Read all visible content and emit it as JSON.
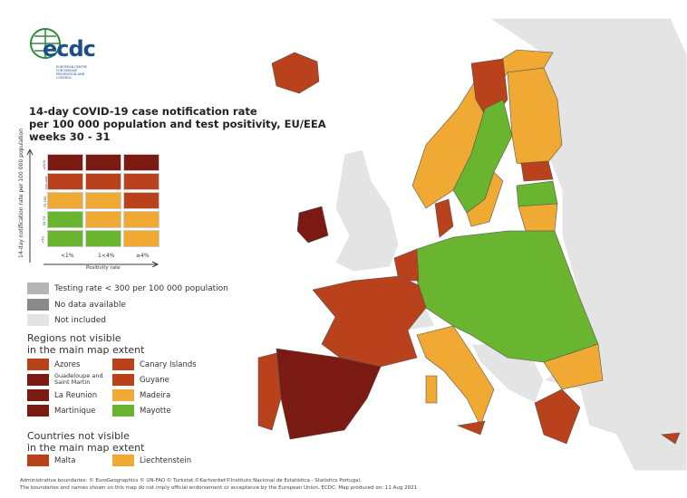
{
  "logo": {
    "name": "ecdc",
    "subtitle": "EUROPEAN CENTRE FOR DISEASE PREVENTION AND CONTROL"
  },
  "title": [
    "14-day COVID-19 case notification rate",
    "per 100 000 population and test positivity, EU/EEA",
    "weeks 30 - 31"
  ],
  "colors": {
    "dark_red": "#7b1a12",
    "red": "#b9421c",
    "orange": "#f0a932",
    "green": "#69b52f",
    "gray": "#b5b5b5",
    "dark_gray": "#8a8a8a",
    "light_gray": "#e4e4e4"
  },
  "matrix": {
    "y_axis": "14-day notification rate per 100 000 population",
    "x_axis": "Positivity rate",
    "rows": [
      "≥500",
      "200-499",
      "75-200",
      "50-74",
      "<50"
    ],
    "cols": [
      "<1%",
      "1<4%",
      "≥4%"
    ],
    "cells": [
      [
        "dark_red",
        "dark_red",
        "dark_red"
      ],
      [
        "red",
        "red",
        "red"
      ],
      [
        "orange",
        "orange",
        "red"
      ],
      [
        "green",
        "orange",
        "orange"
      ],
      [
        "green",
        "green",
        "orange"
      ]
    ]
  },
  "legend": {
    "testing": "Testing rate < 300 per 100 000 population",
    "no_data": "No data available",
    "not_included": "Not included"
  },
  "regions": {
    "heading": [
      "Regions not visible",
      "in the main map extent"
    ],
    "items": [
      {
        "label": "Azores",
        "color": "red"
      },
      {
        "label": "Canary Islands",
        "color": "red"
      },
      {
        "label": "Guadeloupe and Saint Martin",
        "color": "dark_red"
      },
      {
        "label": "Guyane",
        "color": "red"
      },
      {
        "label": "La Reunion",
        "color": "dark_red"
      },
      {
        "label": "Madeira",
        "color": "orange"
      },
      {
        "label": "Martinique",
        "color": "dark_red"
      },
      {
        "label": "Mayotte",
        "color": "green"
      }
    ]
  },
  "countries": {
    "heading": [
      "Countries not visible",
      "in the main map extent"
    ],
    "items": [
      {
        "label": "Malta",
        "color": "red"
      },
      {
        "label": "Liechtenstein",
        "color": "orange"
      }
    ]
  },
  "footer": [
    "Administrative boundaries: © EuroGeographics © UN-FAO © Turkstat.©Kartverket©Instituto Nacional de Estatística - Statistics Portugal.",
    "The boundaries and names shown on this map do not imply official endorsement or acceptance by the European Union. ECDC. Map produced on: 11 Aug 2021"
  ]
}
